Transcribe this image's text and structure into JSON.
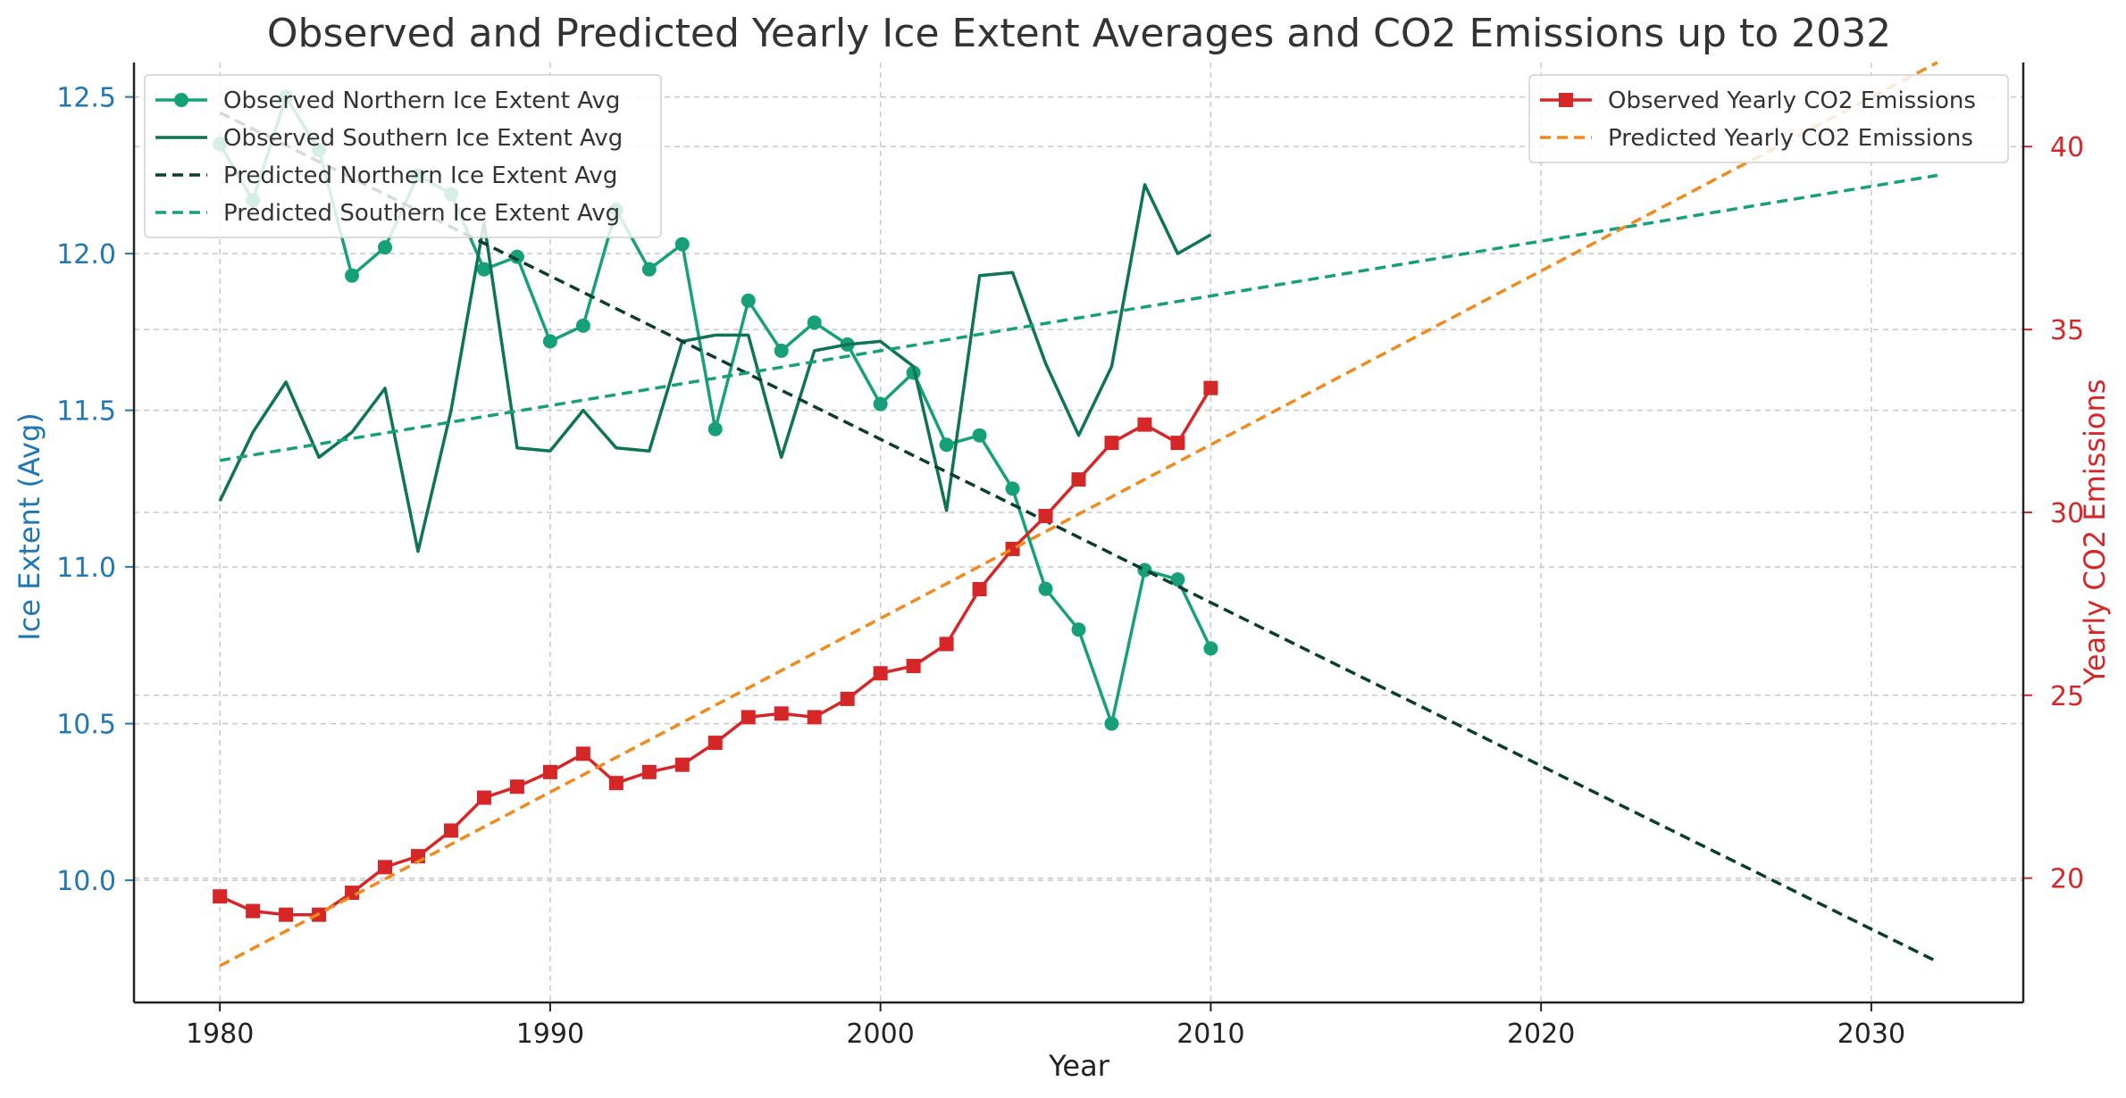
{
  "chart_data": {
    "type": "line",
    "title": "Observed and Predicted Yearly Ice Extent Averages and CO2 Emissions up to 2032",
    "xlabel": "Year",
    "ylabel_left": "Ice Extent (Avg)",
    "ylabel_right": "Yearly CO2 Emissions",
    "xlim": [
      1977.4,
      2034.6
    ],
    "ylim_left": [
      9.61,
      12.61
    ],
    "ylim_right": [
      16.6,
      42.3
    ],
    "x_ticks": [
      1980,
      1990,
      2000,
      2010,
      2020,
      2030
    ],
    "y_left_ticks": [
      "10.0",
      "10.5",
      "11.0",
      "11.5",
      "12.0",
      "12.5"
    ],
    "y_right_ticks": [
      "20",
      "25",
      "30",
      "35",
      "40"
    ],
    "grid": true,
    "colors": {
      "left_axis": "#1f77b4",
      "right_axis": "#d62728",
      "north_obs": "#16a07a",
      "south_obs": "#0e7452",
      "north_pred": "#0a3d2c",
      "south_pred": "#16a07a",
      "co2_obs": "#d62728",
      "co2_pred": "#f08a1c",
      "grid": "#c8c8c8"
    },
    "legend_left": [
      "Observed Northern Ice Extent Avg",
      "Observed Southern Ice Extent Avg",
      "Predicted Northern Ice Extent Avg",
      "Predicted Southern Ice Extent Avg"
    ],
    "legend_right": [
      "Observed Yearly CO2 Emissions",
      "Predicted Yearly CO2 Emissions"
    ],
    "series": [
      {
        "name": "Observed Northern Ice Extent Avg",
        "axis": "left",
        "style": "solid",
        "marker": "circle",
        "x": [
          1980,
          1981,
          1982,
          1983,
          1984,
          1985,
          1986,
          1987,
          1988,
          1989,
          1990,
          1991,
          1992,
          1993,
          1994,
          1995,
          1996,
          1997,
          1998,
          1999,
          2000,
          2001,
          2002,
          2003,
          2004,
          2005,
          2006,
          2007,
          2008,
          2009,
          2010
        ],
        "y": [
          12.35,
          12.17,
          12.5,
          12.33,
          11.93,
          12.02,
          12.25,
          12.19,
          11.95,
          11.99,
          11.72,
          11.77,
          12.14,
          11.95,
          12.03,
          11.44,
          11.85,
          11.69,
          11.78,
          11.71,
          11.52,
          11.62,
          11.39,
          11.42,
          11.25,
          10.93,
          10.8,
          10.5,
          10.99,
          10.96,
          10.74
        ]
      },
      {
        "name": "Observed Southern Ice Extent Avg",
        "axis": "left",
        "style": "solid",
        "marker": "none",
        "x": [
          1980,
          1981,
          1982,
          1983,
          1984,
          1985,
          1986,
          1987,
          1988,
          1989,
          1990,
          1991,
          1992,
          1993,
          1994,
          1995,
          1996,
          1997,
          1998,
          1999,
          2000,
          2001,
          2002,
          2003,
          2004,
          2005,
          2006,
          2007,
          2008,
          2009,
          2010
        ],
        "y": [
          11.21,
          11.43,
          11.59,
          11.35,
          11.43,
          11.57,
          11.05,
          11.5,
          12.1,
          11.38,
          11.37,
          11.5,
          11.38,
          11.37,
          11.72,
          11.74,
          11.74,
          11.35,
          11.69,
          11.71,
          11.72,
          11.64,
          11.18,
          11.93,
          11.94,
          11.65,
          11.42,
          11.64,
          12.22,
          12.0,
          12.06
        ]
      },
      {
        "name": "Predicted Northern Ice Extent Avg",
        "axis": "left",
        "style": "dashed",
        "marker": "none",
        "x": [
          1980,
          2032
        ],
        "y": [
          12.45,
          9.74
        ]
      },
      {
        "name": "Predicted Southern Ice Extent Avg",
        "axis": "left",
        "style": "dashed",
        "marker": "none",
        "x": [
          1980,
          2032
        ],
        "y": [
          11.34,
          12.25
        ]
      },
      {
        "name": "Observed Yearly CO2 Emissions",
        "axis": "right",
        "style": "solid",
        "marker": "square",
        "x": [
          1980,
          1981,
          1982,
          1983,
          1984,
          1985,
          1986,
          1987,
          1988,
          1989,
          1990,
          1991,
          1992,
          1993,
          1994,
          1995,
          1996,
          1997,
          1998,
          1999,
          2000,
          2001,
          2002,
          2003,
          2004,
          2005,
          2006,
          2007,
          2008,
          2009,
          2010
        ],
        "y": [
          19.5,
          19.1,
          19.0,
          19.0,
          19.6,
          20.3,
          20.6,
          21.3,
          22.2,
          22.5,
          22.9,
          23.4,
          22.6,
          22.9,
          23.1,
          23.7,
          24.4,
          24.5,
          24.4,
          24.9,
          25.6,
          25.8,
          26.4,
          27.9,
          29.0,
          29.9,
          30.9,
          31.9,
          32.4,
          31.9,
          33.4
        ]
      },
      {
        "name": "Predicted Yearly CO2 Emissions",
        "axis": "right",
        "style": "dashed",
        "marker": "none",
        "x": [
          1980,
          2032
        ],
        "y": [
          17.6,
          42.3
        ]
      }
    ]
  }
}
